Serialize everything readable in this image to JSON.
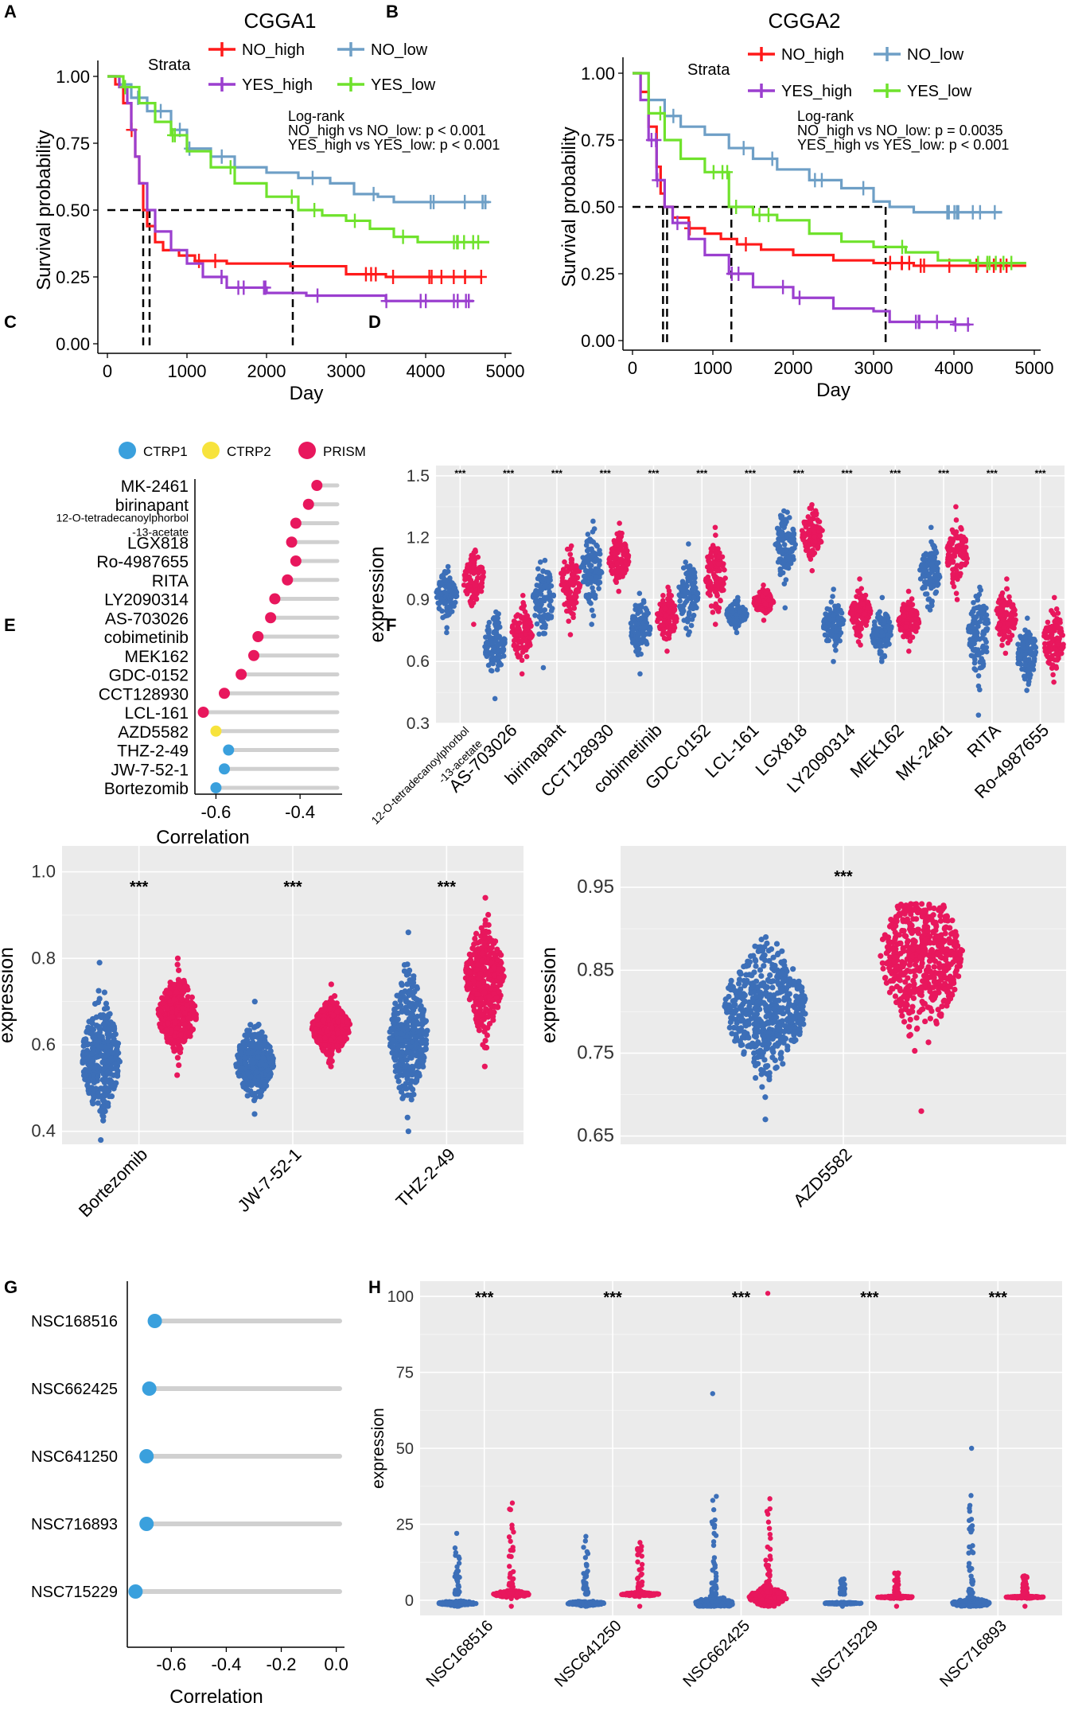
{
  "figure": {
    "panel_labels": [
      "A",
      "B",
      "C",
      "D",
      "E",
      "F",
      "G",
      "H"
    ],
    "colors": {
      "no_high": "#ff1a1a",
      "no_low": "#6e9fc6",
      "yes_high": "#9b3fcf",
      "yes_low": "#6fe22c",
      "ctrp1": "#3aa0dd",
      "ctrp2": "#f7e33c",
      "prism": "#e8175d",
      "low_group": "#3c6fb8",
      "high_group": "#e8175d",
      "panel_bg": "#ebebeb",
      "stem": "#d0d0d0"
    }
  },
  "chart_data": [
    {
      "id": "A",
      "type": "line",
      "title": "CGGA1",
      "xlabel": "Day",
      "ylabel": "Survival probability",
      "xlim": [
        0,
        5000
      ],
      "ylim": [
        0,
        1
      ],
      "xticks": [
        "0",
        "1000",
        "2000",
        "3000",
        "4000",
        "5000"
      ],
      "yticks": [
        "0.00",
        "0.25",
        "0.50",
        "0.75",
        "1.00"
      ],
      "legend_title": "Strata",
      "legend": [
        "NO_high",
        "NO_low",
        "YES_high",
        "YES_low"
      ],
      "annotation": [
        "Log-rank",
        "NO_high vs NO_low: p < 0.001",
        "YES_high vs YES_low: p < 0.001"
      ],
      "median_days": [
        450,
        530,
        2330
      ],
      "series": [
        {
          "name": "NO_high",
          "x": [
            0,
            100,
            200,
            300,
            350,
            400,
            450,
            500,
            600,
            700,
            900,
            1100,
            1500,
            1900,
            2300,
            3000,
            3500,
            4700
          ],
          "y": [
            1,
            0.97,
            0.9,
            0.8,
            0.7,
            0.6,
            0.5,
            0.44,
            0.38,
            0.35,
            0.33,
            0.31,
            0.3,
            0.3,
            0.29,
            0.26,
            0.25,
            0.25
          ]
        },
        {
          "name": "NO_low",
          "x": [
            0,
            150,
            300,
            500,
            800,
            1000,
            1300,
            1600,
            2000,
            2400,
            2800,
            3100,
            3400,
            3600,
            4800
          ],
          "y": [
            1,
            0.97,
            0.92,
            0.87,
            0.8,
            0.73,
            0.7,
            0.66,
            0.64,
            0.62,
            0.6,
            0.56,
            0.55,
            0.53,
            0.53
          ]
        },
        {
          "name": "YES_high",
          "x": [
            0,
            150,
            250,
            300,
            350,
            400,
            500,
            600,
            800,
            1000,
            1200,
            1500,
            2000,
            2500,
            3000,
            3500,
            4600
          ],
          "y": [
            1,
            0.96,
            0.9,
            0.8,
            0.7,
            0.6,
            0.5,
            0.42,
            0.35,
            0.3,
            0.25,
            0.21,
            0.19,
            0.18,
            0.18,
            0.16,
            0.16
          ]
        },
        {
          "name": "YES_low",
          "x": [
            0,
            200,
            400,
            600,
            800,
            1000,
            1300,
            1600,
            2000,
            2400,
            2700,
            3000,
            3300,
            3600,
            3900,
            4800
          ],
          "y": [
            1,
            0.96,
            0.9,
            0.83,
            0.78,
            0.72,
            0.66,
            0.6,
            0.55,
            0.5,
            0.48,
            0.46,
            0.43,
            0.4,
            0.38,
            0.38
          ]
        }
      ]
    },
    {
      "id": "B",
      "type": "line",
      "title": "CGGA2",
      "xlabel": "Day",
      "ylabel": "Survival probability",
      "xlim": [
        0,
        5000
      ],
      "ylim": [
        0,
        1
      ],
      "xticks": [
        "0",
        "1000",
        "2000",
        "3000",
        "4000",
        "5000"
      ],
      "yticks": [
        "0.00",
        "0.25",
        "0.50",
        "0.75",
        "1.00"
      ],
      "legend_title": "Strata",
      "legend": [
        "NO_high",
        "NO_low",
        "YES_high",
        "YES_low"
      ],
      "annotation": [
        "Log-rank",
        "NO_high vs NO_low: p = 0.0035",
        "YES_high vs YES_low: p < 0.001"
      ],
      "median_days": [
        380,
        430,
        1230,
        3150
      ],
      "series": [
        {
          "name": "NO_high",
          "x": [
            0,
            100,
            200,
            300,
            350,
            400,
            500,
            700,
            900,
            1100,
            1300,
            1600,
            2000,
            2500,
            3000,
            3500,
            4000,
            4900
          ],
          "y": [
            1,
            0.93,
            0.8,
            0.65,
            0.55,
            0.5,
            0.46,
            0.42,
            0.4,
            0.38,
            0.36,
            0.34,
            0.32,
            0.3,
            0.29,
            0.28,
            0.28,
            0.28
          ]
        },
        {
          "name": "NO_low",
          "x": [
            0,
            200,
            400,
            600,
            900,
            1200,
            1500,
            1800,
            2200,
            2600,
            3000,
            3200,
            3500,
            4600
          ],
          "y": [
            1,
            0.9,
            0.84,
            0.8,
            0.77,
            0.72,
            0.68,
            0.64,
            0.6,
            0.57,
            0.52,
            0.5,
            0.48,
            0.48
          ]
        },
        {
          "name": "YES_high",
          "x": [
            0,
            100,
            200,
            300,
            400,
            500,
            700,
            900,
            1200,
            1500,
            2000,
            2500,
            3000,
            3200,
            3500,
            4000,
            4200
          ],
          "y": [
            1,
            0.9,
            0.75,
            0.6,
            0.5,
            0.44,
            0.38,
            0.32,
            0.25,
            0.2,
            0.16,
            0.12,
            0.11,
            0.07,
            0.07,
            0.06,
            0.06
          ]
        },
        {
          "name": "YES_low",
          "x": [
            0,
            200,
            400,
            600,
            900,
            1200,
            1500,
            1800,
            2200,
            2600,
            3000,
            3400,
            3800,
            4200,
            4900
          ],
          "y": [
            1,
            0.85,
            0.75,
            0.68,
            0.63,
            0.5,
            0.47,
            0.45,
            0.4,
            0.37,
            0.35,
            0.33,
            0.3,
            0.29,
            0.29
          ]
        }
      ]
    },
    {
      "id": "C",
      "type": "scatter",
      "subtype": "lollipop",
      "xlabel": "Correlation",
      "xlim": [
        -0.65,
        -0.3
      ],
      "xticks": [
        "-0.6",
        "-0.4"
      ],
      "legend": [
        "CTRP1",
        "CTRP2",
        "PRISM"
      ],
      "categories": [
        "MK-2461",
        "birinapant",
        "12-O-tetradecanoylphorbol",
        "-13-acetate",
        "LGX818",
        "Ro-4987655",
        "RITA",
        "LY2090314",
        "AS-703026",
        "cobimetinib",
        "MEK162",
        "GDC-0152",
        "CCT128930",
        "LCL-161",
        "AZD5582",
        "THZ-2-49",
        "JW-7-52-1",
        "Bortezomib"
      ],
      "points": [
        {
          "label": "MK-2461",
          "value": -0.36,
          "source": "PRISM"
        },
        {
          "label": "birinapant",
          "value": -0.38,
          "source": "PRISM"
        },
        {
          "label": "12-O-tetradecanoylphorbol-13-acetate",
          "value": -0.41,
          "source": "PRISM"
        },
        {
          "label": "LGX818",
          "value": -0.42,
          "source": "PRISM"
        },
        {
          "label": "Ro-4987655",
          "value": -0.41,
          "source": "PRISM"
        },
        {
          "label": "RITA",
          "value": -0.43,
          "source": "PRISM"
        },
        {
          "label": "LY2090314",
          "value": -0.46,
          "source": "PRISM"
        },
        {
          "label": "AS-703026",
          "value": -0.47,
          "source": "PRISM"
        },
        {
          "label": "cobimetinib",
          "value": -0.5,
          "source": "PRISM"
        },
        {
          "label": "MEK162",
          "value": -0.51,
          "source": "PRISM"
        },
        {
          "label": "GDC-0152",
          "value": -0.54,
          "source": "PRISM"
        },
        {
          "label": "CCT128930",
          "value": -0.58,
          "source": "PRISM"
        },
        {
          "label": "LCL-161",
          "value": -0.63,
          "source": "PRISM"
        },
        {
          "label": "AZD5582",
          "value": -0.6,
          "source": "CTRP2"
        },
        {
          "label": "THZ-2-49",
          "value": -0.57,
          "source": "CTRP1"
        },
        {
          "label": "JW-7-52-1",
          "value": -0.58,
          "source": "CTRP1"
        },
        {
          "label": "Bortezomib",
          "value": -0.6,
          "source": "CTRP1"
        }
      ]
    },
    {
      "id": "D",
      "type": "scatter",
      "subtype": "beeswarm",
      "ylabel": "expression",
      "ylim": [
        0.3,
        1.55
      ],
      "yticks": [
        "0.3",
        "0.6",
        "0.9",
        "1.2",
        "1.5"
      ],
      "significance": "***",
      "categories": [
        "12-O-tetradecanoylphorbol\n-13-acetate",
        "AS-703026",
        "birinapant",
        "CCT128930",
        "cobimetinib",
        "GDC-0152",
        "LCL-161",
        "LGX818",
        "LY2090314",
        "MEK162",
        "MK-2461",
        "RITA",
        "Ro-4987655"
      ],
      "low_median": [
        0.92,
        0.68,
        0.9,
        1.05,
        0.77,
        0.93,
        0.83,
        1.16,
        0.78,
        0.74,
        1.03,
        0.75,
        0.64
      ],
      "high_median": [
        1.0,
        0.74,
        0.98,
        1.1,
        0.82,
        1.02,
        0.89,
        1.22,
        0.83,
        0.8,
        1.12,
        0.81,
        0.7
      ],
      "low_range": [
        [
          0.74,
          1.06
        ],
        [
          0.42,
          0.84
        ],
        [
          0.57,
          1.09
        ],
        [
          0.78,
          1.28
        ],
        [
          0.54,
          0.93
        ],
        [
          0.73,
          1.17
        ],
        [
          0.74,
          0.91
        ],
        [
          0.86,
          1.33
        ],
        [
          0.6,
          0.95
        ],
        [
          0.6,
          0.91
        ],
        [
          0.85,
          1.25
        ],
        [
          0.34,
          0.96
        ],
        [
          0.46,
          0.81
        ]
      ],
      "high_range": [
        [
          0.78,
          1.14
        ],
        [
          0.54,
          0.92
        ],
        [
          0.73,
          1.16
        ],
        [
          0.94,
          1.27
        ],
        [
          0.65,
          0.96
        ],
        [
          0.78,
          1.25
        ],
        [
          0.8,
          0.97
        ],
        [
          1.04,
          1.36
        ],
        [
          0.68,
          1.0
        ],
        [
          0.65,
          0.94
        ],
        [
          0.9,
          1.35
        ],
        [
          0.64,
          1.0
        ],
        [
          0.5,
          0.91
        ]
      ]
    },
    {
      "id": "E",
      "type": "scatter",
      "subtype": "beeswarm",
      "ylabel": "expression",
      "ylim": [
        0.37,
        1.06
      ],
      "yticks": [
        "0.4",
        "0.6",
        "0.8",
        "1.0"
      ],
      "significance": "***",
      "categories": [
        "Bortezomib",
        "JW-7-52-1",
        "THZ-2-49"
      ],
      "low_median": [
        0.57,
        0.56,
        0.62
      ],
      "high_median": [
        0.67,
        0.64,
        0.76
      ],
      "low_range": [
        [
          0.38,
          0.79
        ],
        [
          0.44,
          0.7
        ],
        [
          0.4,
          0.86
        ]
      ],
      "high_range": [
        [
          0.53,
          0.8
        ],
        [
          0.55,
          0.74
        ],
        [
          0.55,
          0.94
        ]
      ]
    },
    {
      "id": "F",
      "type": "scatter",
      "subtype": "beeswarm",
      "ylabel": "expression",
      "ylim": [
        0.64,
        1.0
      ],
      "yticks": [
        "0.65",
        "0.75",
        "0.85",
        "0.95"
      ],
      "significance": "***",
      "categories": [
        "AZD5582"
      ],
      "low_median": [
        0.805
      ],
      "high_median": [
        0.865
      ],
      "low_range": [
        [
          0.67,
          0.89
        ]
      ],
      "high_range": [
        [
          0.68,
          0.93
        ]
      ]
    },
    {
      "id": "G",
      "type": "scatter",
      "subtype": "lollipop",
      "xlabel": "Correlation",
      "xlim": [
        -0.76,
        0.03
      ],
      "xticks": [
        "-0.6",
        "-0.4",
        "-0.2",
        "0.0"
      ],
      "points": [
        {
          "label": "NSC168516",
          "value": -0.66
        },
        {
          "label": "NSC662425",
          "value": -0.68
        },
        {
          "label": "NSC641250",
          "value": -0.69
        },
        {
          "label": "NSC716893",
          "value": -0.69
        },
        {
          "label": "NSC715229",
          "value": -0.73
        }
      ]
    },
    {
      "id": "H",
      "type": "scatter",
      "subtype": "beeswarm",
      "ylabel": "expression",
      "ylim": [
        -5,
        105
      ],
      "yticks": [
        "0",
        "25",
        "50",
        "75",
        "100"
      ],
      "significance": "***",
      "categories": [
        "NSC168516",
        "NSC641250",
        "NSC662425",
        "NSC715229",
        "NSC716893"
      ],
      "low_median": [
        -1,
        -1,
        -1,
        -1,
        -1
      ],
      "high_median": [
        2,
        2,
        1,
        1,
        1
      ],
      "low_range": [
        [
          -2,
          22
        ],
        [
          -2,
          21
        ],
        [
          -2,
          68
        ],
        [
          -2,
          7
        ],
        [
          -2,
          50
        ]
      ],
      "high_range": [
        [
          -2,
          32
        ],
        [
          -2,
          19
        ],
        [
          -2,
          101
        ],
        [
          -2,
          9
        ],
        [
          -2,
          8
        ]
      ]
    }
  ]
}
